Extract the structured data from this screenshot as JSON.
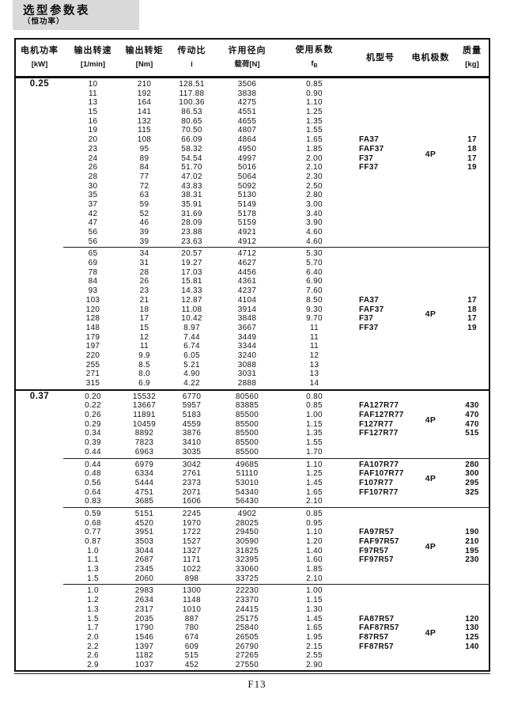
{
  "title": {
    "main": "选型参数表",
    "sub": "（恒功率）"
  },
  "colors": {
    "title_bg": "#d9d9d9",
    "border": "#101010",
    "text": "#111111"
  },
  "footer": {
    "page": "F13"
  },
  "header": {
    "columns": [
      {
        "l1": "电机功率",
        "l2": "[kW]"
      },
      {
        "l1": "输出转速",
        "l2": "[1/min]"
      },
      {
        "l1": "输出转矩",
        "l2": "[Nm]"
      },
      {
        "l1": "传动比",
        "l2": "i"
      },
      {
        "l1": "许用径向",
        "l2": "载荷[N]"
      },
      {
        "l1": "使用系数",
        "l2": "f",
        "l2sub": "B"
      },
      {
        "l1": "机型号",
        "l2": ""
      },
      {
        "l1": "电机极数",
        "l2": ""
      },
      {
        "l1": "质量",
        "l2": "[kg]"
      }
    ]
  },
  "chart_data": {
    "type": "table",
    "title": "选型参数表（恒功率）",
    "columns": [
      "电机功率[kW]",
      "输出转速[1/min]",
      "输出转矩[Nm]",
      "传动比 i",
      "许用径向载荷[N]",
      "使用系数 fB",
      "机型号",
      "电机极数",
      "质量[kg]"
    ]
  },
  "sections": [
    {
      "power": "0.25",
      "groups": [
        {
          "rows": [
            [
              "10",
              "210",
              "128.51",
              "3506",
              "0.85"
            ],
            [
              "11",
              "192",
              "117.88",
              "3838",
              "0.90"
            ],
            [
              "13",
              "164",
              "100.36",
              "4275",
              "1.10"
            ],
            [
              "15",
              "141",
              "86.53",
              "4551",
              "1.25"
            ],
            [
              "16",
              "132",
              "80.65",
              "4655",
              "1.35"
            ],
            [
              "19",
              "115",
              "70.50",
              "4807",
              "1.55"
            ],
            [
              "20",
              "108",
              "66.09",
              "4864",
              "1.65"
            ],
            [
              "23",
              "95",
              "58.32",
              "4950",
              "1.85"
            ],
            [
              "24",
              "89",
              "54.54",
              "4997",
              "2.00"
            ],
            [
              "26",
              "84",
              "51.70",
              "5016",
              "2.10"
            ],
            [
              "28",
              "77",
              "47.02",
              "5064",
              "2.30"
            ],
            [
              "30",
              "72",
              "43.83",
              "5092",
              "2.50"
            ],
            [
              "35",
              "63",
              "38.31",
              "5130",
              "2.80"
            ],
            [
              "37",
              "59",
              "35.91",
              "5149",
              "3.00"
            ],
            [
              "42",
              "52",
              "31.69",
              "5178",
              "3.40"
            ],
            [
              "47",
              "46",
              "28.09",
              "5159",
              "3.90"
            ],
            [
              "56",
              "39",
              "23.88",
              "4921",
              "4.60"
            ],
            [
              "56",
              "39",
              "23.63",
              "4912",
              "4.60"
            ]
          ],
          "models": [
            "FA37",
            "FAF37",
            "F37",
            "FF37"
          ],
          "poles": "4P",
          "weights": [
            "17",
            "18",
            "17",
            "19"
          ],
          "model_row": 6
        },
        {
          "rows": [
            [
              "65",
              "34",
              "20.57",
              "4712",
              "5.30"
            ],
            [
              "69",
              "31",
              "19.27",
              "4627",
              "5.70"
            ],
            [
              "78",
              "28",
              "17.03",
              "4456",
              "6.40"
            ],
            [
              "84",
              "26",
              "15.81",
              "4361",
              "6.90"
            ],
            [
              "93",
              "23",
              "14.33",
              "4237",
              "7.60"
            ],
            [
              "103",
              "21",
              "12.87",
              "4104",
              "8.50"
            ],
            [
              "120",
              "18",
              "11.08",
              "3914",
              "9.30"
            ],
            [
              "128",
              "17",
              "10.42",
              "3848",
              "9.70"
            ],
            [
              "148",
              "15",
              "8.97",
              "3667",
              "11"
            ],
            [
              "179",
              "12",
              "7.44",
              "3449",
              "11"
            ],
            [
              "197",
              "11",
              "6.74",
              "3344",
              "11"
            ],
            [
              "220",
              "9.9",
              "6.05",
              "3240",
              "12"
            ],
            [
              "255",
              "8.5",
              "5.21",
              "3088",
              "13"
            ],
            [
              "271",
              "8.0",
              "4.90",
              "3031",
              "13"
            ],
            [
              "315",
              "6.9",
              "4.22",
              "2888",
              "14"
            ]
          ],
          "models": [
            "FA37",
            "FAF37",
            "F37",
            "FF37"
          ],
          "poles": "4P",
          "weights": [
            "17",
            "18",
            "17",
            "19"
          ],
          "model_row": 5
        }
      ]
    },
    {
      "power": "0.37",
      "groups": [
        {
          "rows": [
            [
              "0.20",
              "15532",
              "6770",
              "80560",
              "0.80"
            ],
            [
              "0.22",
              "13667",
              "5957",
              "83885",
              "0.85"
            ],
            [
              "0.26",
              "11891",
              "5183",
              "85500",
              "1.00"
            ],
            [
              "0.29",
              "10459",
              "4559",
              "85500",
              "1.15"
            ],
            [
              "0.34",
              "8892",
              "3876",
              "85500",
              "1.35"
            ],
            [
              "0.39",
              "7823",
              "3410",
              "85500",
              "1.55"
            ],
            [
              "0.44",
              "6963",
              "3035",
              "85500",
              "1.70"
            ]
          ],
          "models": [
            "FA127R77",
            "FAF127R77",
            "F127R77",
            "FF127R77"
          ],
          "poles": "4P",
          "weights": [
            "430",
            "470",
            "470",
            "515"
          ],
          "model_row": 1
        },
        {
          "rows": [
            [
              "0.44",
              "6979",
              "3042",
              "49685",
              "1.10"
            ],
            [
              "0.48",
              "6334",
              "2761",
              "51110",
              "1.25"
            ],
            [
              "0.56",
              "5444",
              "2373",
              "53010",
              "1.45"
            ],
            [
              "0.64",
              "4751",
              "2071",
              "54340",
              "1.65"
            ],
            [
              "0.83",
              "3685",
              "1606",
              "56430",
              "2.10"
            ]
          ],
          "models": [
            "FA107R77",
            "FAF107R77",
            "F107R77",
            "FF107R77"
          ],
          "poles": "4P",
          "weights": [
            "280",
            "300",
            "295",
            "325"
          ],
          "model_row": 0
        },
        {
          "rows": [
            [
              "0.59",
              "5151",
              "2245",
              "4902",
              "0.85"
            ],
            [
              "0.68",
              "4520",
              "1970",
              "28025",
              "0.95"
            ],
            [
              "0.77",
              "3951",
              "1722",
              "29450",
              "1.10"
            ],
            [
              "0.87",
              "3503",
              "1527",
              "30590",
              "1.20"
            ],
            [
              "1.0",
              "3044",
              "1327",
              "31825",
              "1.40"
            ],
            [
              "1.1",
              "2687",
              "1171",
              "32395",
              "1.60"
            ],
            [
              "1.3",
              "2345",
              "1022",
              "33060",
              "1.85"
            ],
            [
              "1.5",
              "2060",
              "898",
              "33725",
              "2.10"
            ]
          ],
          "models": [
            "FA97R57",
            "FAF97R57",
            "F97R57",
            "FF97R57"
          ],
          "poles": "4P",
          "weights": [
            "190",
            "210",
            "195",
            "230"
          ],
          "model_row": 2
        },
        {
          "rows": [
            [
              "1.0",
              "2983",
              "1300",
              "22230",
              "1.00"
            ],
            [
              "1.2",
              "2634",
              "1148",
              "23370",
              "1.15"
            ],
            [
              "1.3",
              "2317",
              "1010",
              "24415",
              "1.30"
            ],
            [
              "1.5",
              "2035",
              "887",
              "25175",
              "1.45"
            ],
            [
              "1.7",
              "1790",
              "780",
              "25840",
              "1.65"
            ],
            [
              "2.0",
              "1546",
              "674",
              "26505",
              "1.95"
            ],
            [
              "2.2",
              "1397",
              "609",
              "26790",
              "2.15"
            ],
            [
              "2.6",
              "1182",
              "515",
              "27265",
              "2.55"
            ],
            [
              "2.9",
              "1037",
              "452",
              "27550",
              "2.90"
            ]
          ],
          "models": [
            "FA87R57",
            "FAF87R57",
            "F87R57",
            "FF87R57"
          ],
          "poles": "4P",
          "weights": [
            "120",
            "130",
            "125",
            "140"
          ],
          "model_row": 3
        }
      ]
    }
  ]
}
